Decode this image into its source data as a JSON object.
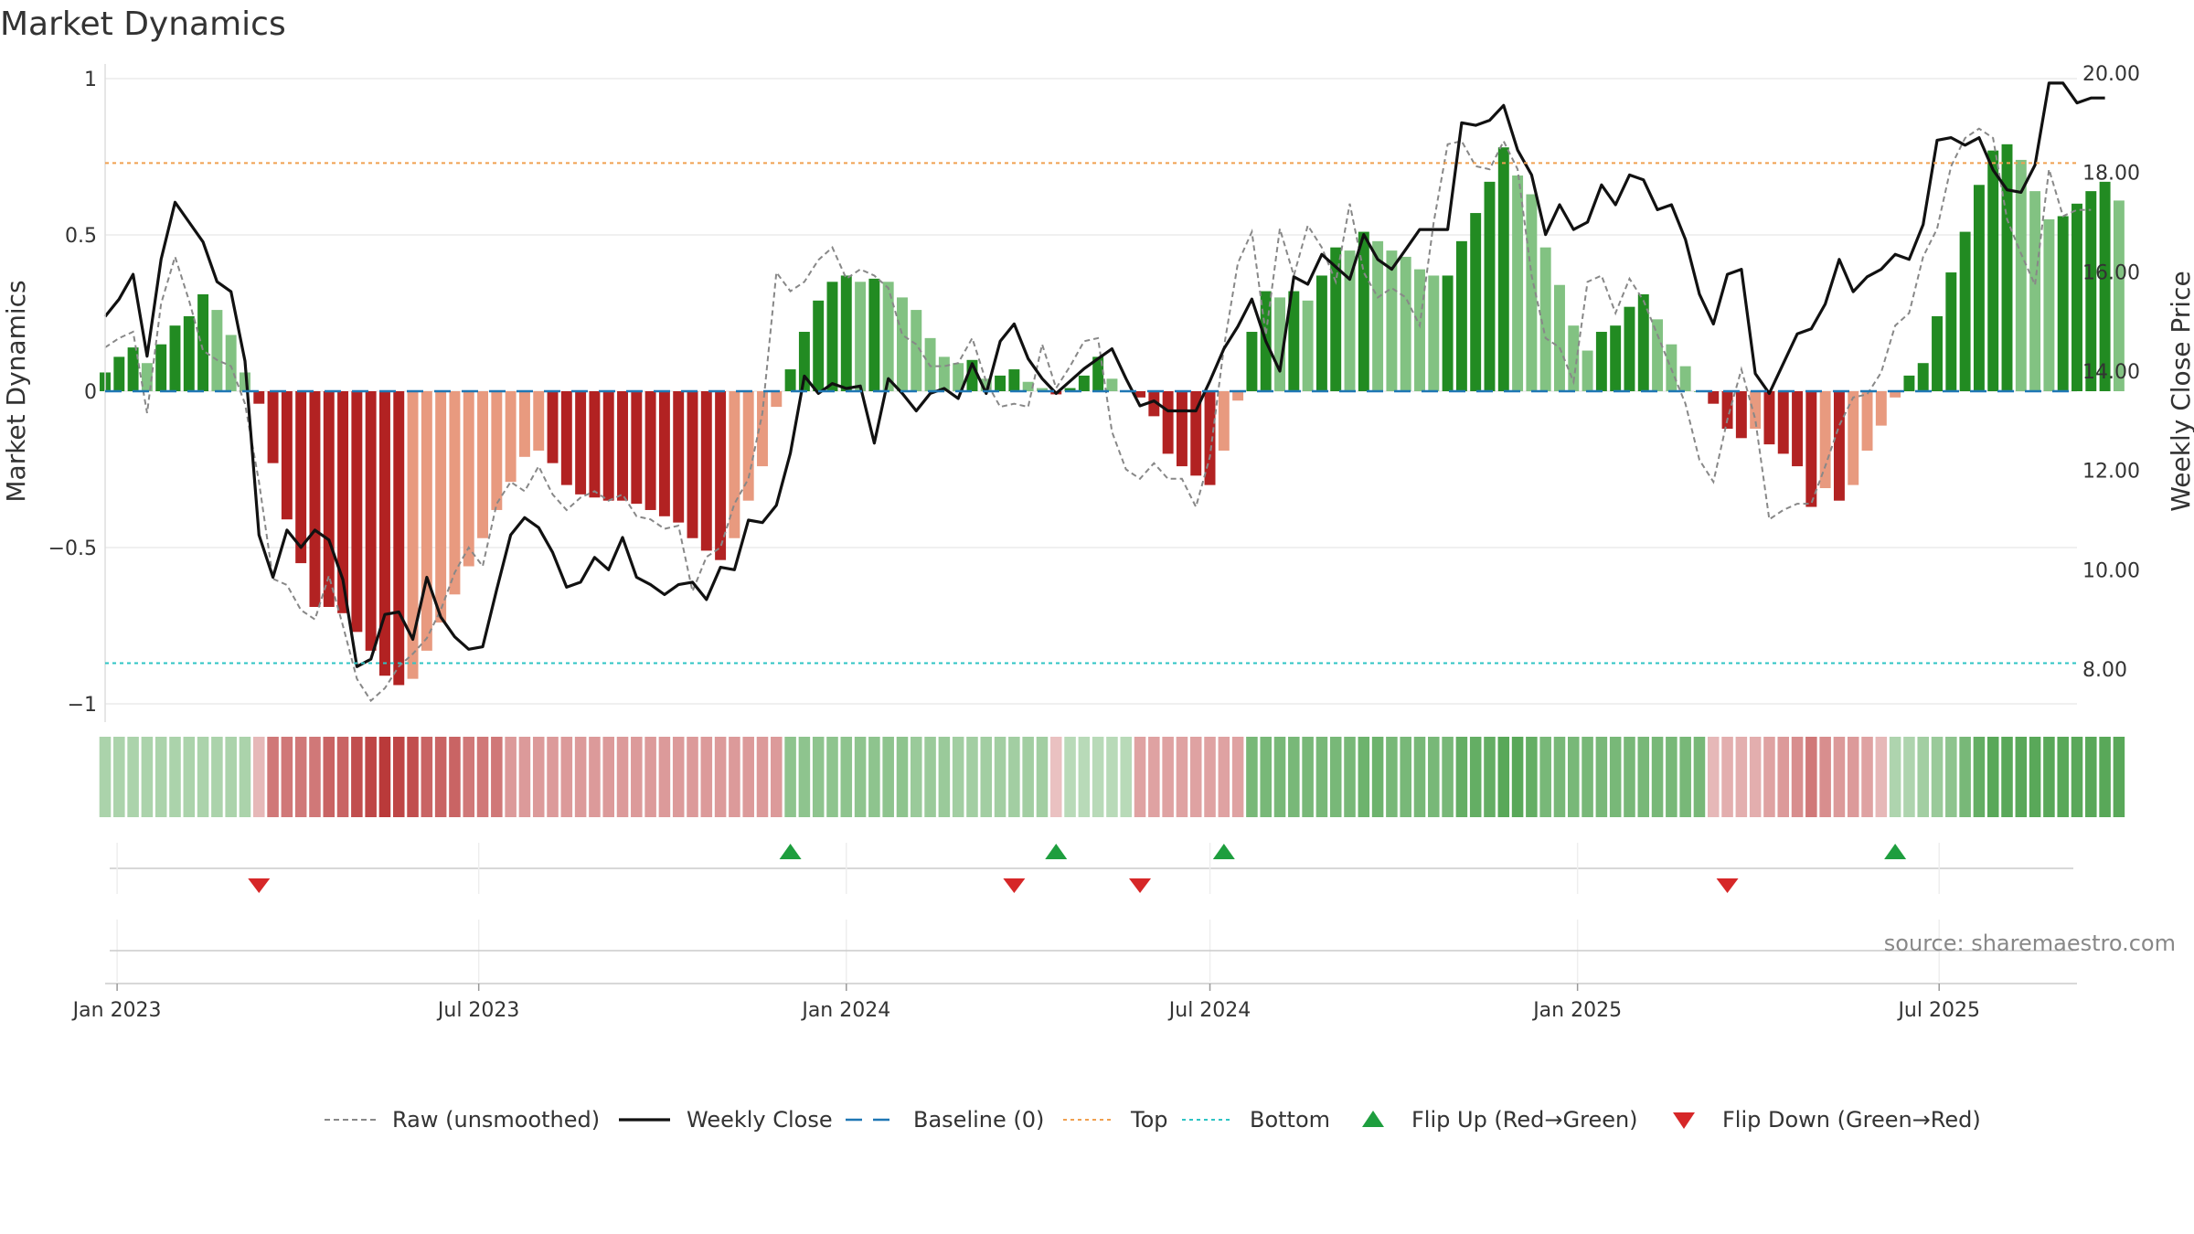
{
  "chart_data": {
    "type": "bar",
    "title": "Market Dynamics",
    "ylabel_left": "Market Dynamics",
    "ylabel_right": "Weekly Close Price",
    "source": "source: sharemaestro.com",
    "y_left_ticks": [
      1,
      0.5,
      0,
      -0.5,
      -1
    ],
    "y_left_tick_labels": [
      "1",
      "0.5",
      "0",
      "−0.5",
      "−1"
    ],
    "y_left_range": [
      -1,
      1
    ],
    "y_right_ticks": [
      8,
      10,
      12,
      14,
      16,
      18,
      20
    ],
    "y_right_tick_labels": [
      "8.00",
      "10.00",
      "12.00",
      "14.00",
      "16.00",
      "18.00",
      "20.00"
    ],
    "y_right_range": [
      7.3,
      20.6
    ],
    "x_start": "2022-12-26",
    "x_end": "2025-09-08",
    "x_ticks": [
      {
        "date": "2023-01-01",
        "label": "Jan 2023"
      },
      {
        "date": "2023-07-01",
        "label": "Jul 2023"
      },
      {
        "date": "2024-01-01",
        "label": "Jan 2024"
      },
      {
        "date": "2024-07-01",
        "label": "Jul 2024"
      },
      {
        "date": "2025-01-01",
        "label": "Jan 2025"
      },
      {
        "date": "2025-07-01",
        "label": "Jul 2025"
      }
    ],
    "reference_lines": {
      "baseline": 0,
      "top": 0.73,
      "bottom": -0.87
    },
    "colors": {
      "strong_green": "#228B22",
      "light_green": "#82C282",
      "strong_red": "#B22222",
      "light_red": "#E89A7F",
      "weekly_close": "#111111",
      "raw": "#888888",
      "baseline": "#1F77B4",
      "top": "#F0A050",
      "bottom": "#2EC4C4",
      "flip_up": "#1E9E3E",
      "flip_down": "#D62728"
    },
    "series": [
      {
        "name": "Market Dynamics",
        "type": "bar",
        "start_date": "2022-12-26",
        "values": [
          0.06,
          0.11,
          0.14,
          0.09,
          0.15,
          0.21,
          0.24,
          0.31,
          0.26,
          0.18,
          0.06,
          -0.04,
          -0.23,
          -0.41,
          -0.55,
          -0.69,
          -0.69,
          -0.71,
          -0.77,
          -0.83,
          -0.91,
          -0.94,
          -0.92,
          -0.83,
          -0.74,
          -0.65,
          -0.56,
          -0.47,
          -0.38,
          -0.29,
          -0.21,
          -0.19,
          -0.23,
          -0.3,
          -0.33,
          -0.34,
          -0.35,
          -0.35,
          -0.36,
          -0.38,
          -0.4,
          -0.42,
          -0.47,
          -0.51,
          -0.54,
          -0.47,
          -0.35,
          -0.24,
          -0.05,
          0.07,
          0.19,
          0.29,
          0.35,
          0.37,
          0.35,
          0.36,
          0.35,
          0.3,
          0.26,
          0.17,
          0.11,
          0.09,
          0.1,
          0.04,
          0.05,
          0.07,
          0.03,
          0.01,
          -0.01,
          0.01,
          0.05,
          0.11,
          0.04,
          0.0,
          -0.02,
          -0.08,
          -0.2,
          -0.24,
          -0.27,
          -0.3,
          -0.19,
          -0.03,
          0.19,
          0.32,
          0.3,
          0.32,
          0.29,
          0.37,
          0.46,
          0.45,
          0.51,
          0.48,
          0.45,
          0.43,
          0.39,
          0.37,
          0.37,
          0.48,
          0.57,
          0.67,
          0.78,
          0.69,
          0.63,
          0.46,
          0.34,
          0.21,
          0.13,
          0.19,
          0.21,
          0.27,
          0.31,
          0.23,
          0.15,
          0.08,
          0.0,
          -0.04,
          -0.12,
          -0.15,
          -0.12,
          -0.17,
          -0.2,
          -0.24,
          -0.37,
          -0.31,
          -0.35,
          -0.3,
          -0.19,
          -0.11,
          -0.02,
          0.05,
          0.09,
          0.24,
          0.38,
          0.51,
          0.66,
          0.77,
          0.79,
          0.74,
          0.64,
          0.55,
          0.56,
          0.6,
          0.64,
          0.67,
          0.61
        ]
      },
      {
        "name": "Raw (unsmoothed)",
        "type": "line",
        "start_date": "2022-12-26",
        "values": [
          0.14,
          0.17,
          0.19,
          -0.07,
          0.28,
          0.43,
          0.29,
          0.13,
          0.1,
          0.08,
          -0.04,
          -0.29,
          -0.6,
          -0.62,
          -0.7,
          -0.73,
          -0.59,
          -0.75,
          -0.92,
          -0.99,
          -0.95,
          -0.88,
          -0.84,
          -0.79,
          -0.7,
          -0.58,
          -0.5,
          -0.56,
          -0.36,
          -0.29,
          -0.32,
          -0.24,
          -0.33,
          -0.38,
          -0.34,
          -0.32,
          -0.35,
          -0.33,
          -0.4,
          -0.41,
          -0.44,
          -0.43,
          -0.64,
          -0.53,
          -0.5,
          -0.36,
          -0.28,
          -0.07,
          0.38,
          0.32,
          0.35,
          0.42,
          0.46,
          0.36,
          0.39,
          0.37,
          0.33,
          0.18,
          0.15,
          0.08,
          0.08,
          0.09,
          0.17,
          0.03,
          -0.05,
          -0.04,
          -0.05,
          0.15,
          0.01,
          0.08,
          0.16,
          0.17,
          -0.13,
          -0.25,
          -0.28,
          -0.23,
          -0.28,
          -0.28,
          -0.37,
          -0.21,
          0.14,
          0.41,
          0.51,
          0.18,
          0.52,
          0.37,
          0.53,
          0.46,
          0.35,
          0.6,
          0.38,
          0.3,
          0.33,
          0.3,
          0.21,
          0.54,
          0.79,
          0.8,
          0.72,
          0.71,
          0.8,
          0.71,
          0.37,
          0.17,
          0.14,
          0.03,
          0.35,
          0.37,
          0.25,
          0.36,
          0.29,
          0.18,
          0.07,
          -0.04,
          -0.22,
          -0.29,
          -0.09,
          0.07,
          -0.09,
          -0.41,
          -0.38,
          -0.36,
          -0.36,
          -0.24,
          -0.11,
          -0.02,
          -0.01,
          0.06,
          0.21,
          0.25,
          0.43,
          0.52,
          0.72,
          0.81,
          0.84,
          0.81,
          0.55,
          0.44,
          0.34,
          0.71,
          0.56,
          0.58,
          0.58
        ]
      },
      {
        "name": "Weekly Close",
        "type": "line",
        "axis": "right",
        "start_date": "2022-12-26",
        "values": [
          15.1,
          15.45,
          15.95,
          14.3,
          16.25,
          17.4,
          17.0,
          16.6,
          15.8,
          15.6,
          14.2,
          10.7,
          9.85,
          10.8,
          10.45,
          10.8,
          10.6,
          9.8,
          8.05,
          8.2,
          9.1,
          9.15,
          8.6,
          9.85,
          9.05,
          8.65,
          8.4,
          8.45,
          9.6,
          10.7,
          11.05,
          10.85,
          10.35,
          9.65,
          9.75,
          10.25,
          10.0,
          10.65,
          9.85,
          9.7,
          9.5,
          9.7,
          9.75,
          9.4,
          10.05,
          10.0,
          11.0,
          10.95,
          11.3,
          12.35,
          13.9,
          13.55,
          13.75,
          13.65,
          13.7,
          12.55,
          13.85,
          13.55,
          13.2,
          13.55,
          13.65,
          13.45,
          14.15,
          13.55,
          14.6,
          14.95,
          14.25,
          13.85,
          13.55,
          13.8,
          14.05,
          14.25,
          14.45,
          13.85,
          13.3,
          13.4,
          13.2,
          13.2,
          13.2,
          13.8,
          14.45,
          14.9,
          15.45,
          14.6,
          14.0,
          15.9,
          15.75,
          16.35,
          16.1,
          15.85,
          16.75,
          16.25,
          16.05,
          16.45,
          16.85,
          16.85,
          16.85,
          19.0,
          18.95,
          19.05,
          19.35,
          18.45,
          17.95,
          16.75,
          17.35,
          16.85,
          17.0,
          17.75,
          17.35,
          17.95,
          17.85,
          17.25,
          17.35,
          16.65,
          15.55,
          14.95,
          15.95,
          16.05,
          13.95,
          13.55,
          14.15,
          14.75,
          14.85,
          15.35,
          16.25,
          15.6,
          15.9,
          16.05,
          16.35,
          16.25,
          16.95,
          18.65,
          18.7,
          18.55,
          18.7,
          18.05,
          17.65,
          17.6,
          18.15,
          19.8,
          19.8,
          19.4,
          19.5,
          19.5
        ]
      }
    ],
    "regime_strip_values": [
      0.21,
      0.21,
      0.21,
      0.21,
      0.21,
      0.21,
      0.21,
      0.21,
      0.21,
      0.21,
      0.21,
      -0.15,
      -0.45,
      -0.45,
      -0.45,
      -0.45,
      -0.55,
      -0.55,
      -0.65,
      -0.7,
      -0.75,
      -0.7,
      -0.65,
      -0.55,
      -0.55,
      -0.55,
      -0.45,
      -0.45,
      -0.45,
      -0.3,
      -0.3,
      -0.3,
      -0.3,
      -0.3,
      -0.3,
      -0.3,
      -0.3,
      -0.3,
      -0.3,
      -0.3,
      -0.3,
      -0.3,
      -0.3,
      -0.3,
      -0.3,
      -0.3,
      -0.3,
      -0.3,
      -0.3,
      0.35,
      0.35,
      0.35,
      0.35,
      0.35,
      0.35,
      0.35,
      0.35,
      0.35,
      0.3,
      0.3,
      0.3,
      0.25,
      0.25,
      0.25,
      0.25,
      0.25,
      0.25,
      0.25,
      -0.1,
      0.15,
      0.15,
      0.15,
      0.15,
      0.15,
      -0.25,
      -0.25,
      -0.25,
      -0.25,
      -0.25,
      -0.25,
      -0.25,
      -0.25,
      0.45,
      0.45,
      0.45,
      0.45,
      0.45,
      0.45,
      0.45,
      0.45,
      0.5,
      0.5,
      0.45,
      0.45,
      0.45,
      0.45,
      0.45,
      0.55,
      0.55,
      0.55,
      0.6,
      0.6,
      0.55,
      0.45,
      0.45,
      0.45,
      0.45,
      0.45,
      0.45,
      0.45,
      0.45,
      0.45,
      0.45,
      0.45,
      0.45,
      -0.15,
      -0.2,
      -0.2,
      -0.2,
      -0.25,
      -0.3,
      -0.35,
      -0.45,
      -0.35,
      -0.3,
      -0.3,
      -0.25,
      -0.15,
      0.2,
      0.2,
      0.25,
      0.3,
      0.35,
      0.45,
      0.55,
      0.6,
      0.6,
      0.6,
      0.6,
      0.6,
      0.6,
      0.6,
      0.6,
      0.6,
      0.6
    ],
    "flip_up_dates": [
      "2023-12-04",
      "2024-04-15",
      "2024-07-08",
      "2025-06-09"
    ],
    "flip_down_dates": [
      "2023-03-13",
      "2024-03-25",
      "2024-05-27",
      "2025-03-17"
    ],
    "legend": [
      {
        "label": "Raw (unsmoothed)",
        "style": "dashed-gray"
      },
      {
        "label": "Weekly Close",
        "style": "solid-black"
      },
      {
        "label": "Baseline (0)",
        "style": "dashed-blue"
      },
      {
        "label": "Top",
        "style": "dotted-orange"
      },
      {
        "label": "Bottom",
        "style": "dotted-cyan"
      },
      {
        "label": "Flip Up (Red→Green)",
        "style": "triangle-up-green"
      },
      {
        "label": "Flip Down (Green→Red)",
        "style": "triangle-down-red"
      }
    ],
    "legend_position": "bottom-center",
    "grid": true
  }
}
